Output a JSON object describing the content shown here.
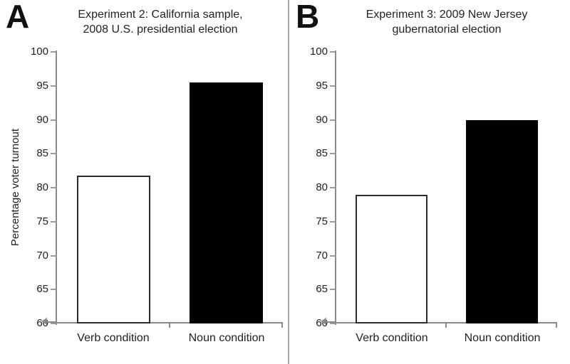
{
  "figure": {
    "background": "#ffffff",
    "divider_color": "#a8a8a8",
    "axis_color": "#8a8a8a",
    "text_color": "#1a1a1a"
  },
  "panels": [
    {
      "letter": "A",
      "title_line1": "Experiment 2: California sample,",
      "title_line2": "2008 U.S. presidential election",
      "ylabel": "Percentage voter turnout"
    },
    {
      "letter": "B",
      "title_line1": "Experiment 3: 2009 New Jersey",
      "title_line2": "gubernatorial election",
      "ylabel": ""
    }
  ],
  "chart_data": [
    {
      "type": "bar",
      "panel": "A",
      "title": "Experiment 2: California sample, 2008 U.S. presidential election",
      "categories": [
        "Verb condition",
        "Noun condition"
      ],
      "values": [
        81.8,
        95.5
      ],
      "bar_fills": [
        "#ffffff",
        "#000000"
      ],
      "bar_borders": [
        "#2b2b2b",
        "#000000"
      ],
      "xlabel": "",
      "ylabel": "Percentage voter turnout",
      "ylim": [
        60,
        100
      ],
      "ytick_step": 5,
      "yticks": [
        60,
        65,
        70,
        75,
        80,
        85,
        90,
        95,
        100
      ],
      "grid": false,
      "legend": null
    },
    {
      "type": "bar",
      "panel": "B",
      "title": "Experiment 3: 2009 New Jersey gubernatorial election",
      "categories": [
        "Verb condition",
        "Noun condition"
      ],
      "values": [
        79.0,
        89.9
      ],
      "bar_fills": [
        "#ffffff",
        "#000000"
      ],
      "bar_borders": [
        "#2b2b2b",
        "#000000"
      ],
      "xlabel": "",
      "ylabel": "",
      "ylim": [
        60,
        100
      ],
      "ytick_step": 5,
      "yticks": [
        60,
        65,
        70,
        75,
        80,
        85,
        90,
        95,
        100
      ],
      "grid": false,
      "legend": null
    }
  ]
}
